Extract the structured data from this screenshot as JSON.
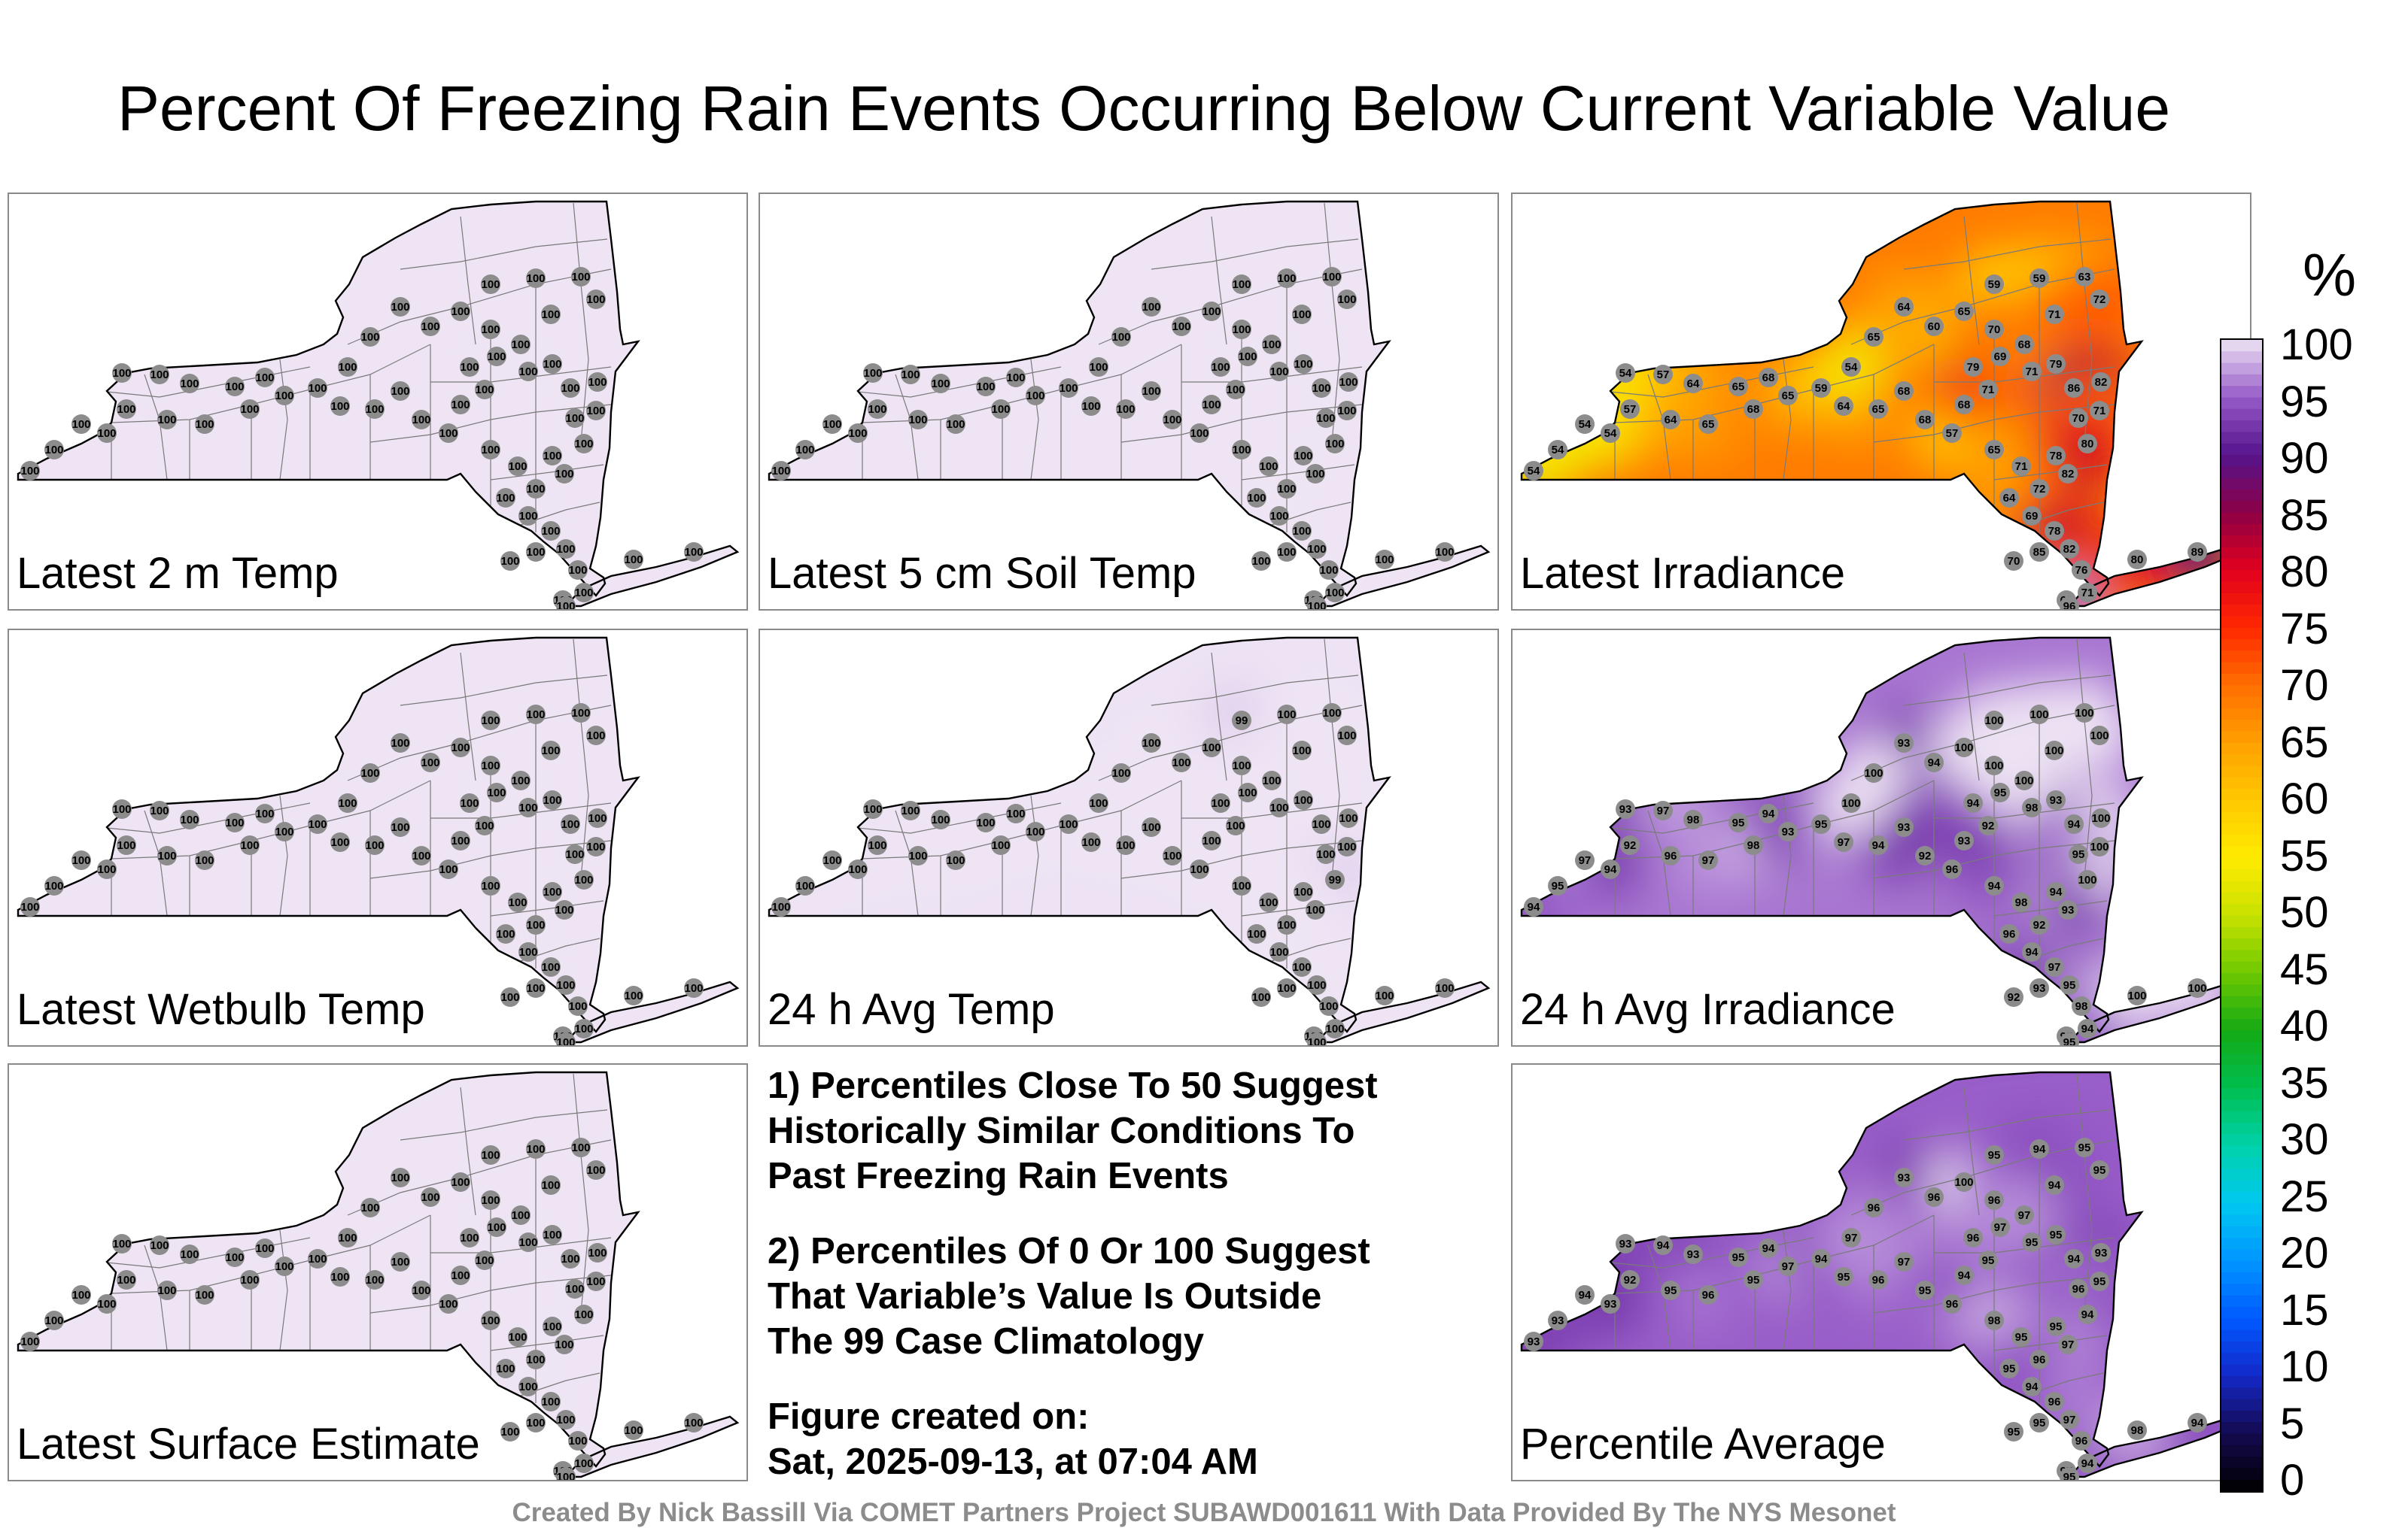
{
  "title": "Percent Of Freezing Rain Events Occurring Below Current Variable Value",
  "colorbar": {
    "unit": "%",
    "ticks": [
      "100",
      "95",
      "90",
      "85",
      "80",
      "75",
      "70",
      "65",
      "60",
      "55",
      "50",
      "45",
      "40",
      "35",
      "30",
      "25",
      "20",
      "15",
      "10",
      "5",
      "0"
    ]
  },
  "notes": {
    "note1": [
      "1) Percentiles Close To 50 Suggest",
      "Historically Similar Conditions To",
      "Past Freezing Rain Events"
    ],
    "note2": [
      "2) Percentiles Of 0 Or 100 Suggest",
      "That Variable’s Value Is Outside",
      "The 99 Case Climatology"
    ],
    "created_label": "Figure created on:",
    "created_value": "Sat, 2025-09-13, at 07:04 AM"
  },
  "footer": "Created By Nick Bassill Via COMET Partners Project SUBAWD001611 With Data Provided By The NYS Mesonet",
  "chart_data": [
    {
      "type": "heatmap",
      "label": "Latest 2 m Temp",
      "station_values": [
        100,
        100,
        100,
        100,
        100,
        100,
        100,
        100,
        100,
        100,
        100,
        100,
        100,
        100,
        100,
        100,
        100,
        100,
        100,
        100,
        100,
        100,
        100,
        100,
        100,
        100,
        100,
        100,
        100,
        100,
        100,
        100,
        100,
        100,
        100,
        100,
        100,
        100,
        100,
        100,
        100,
        100,
        100,
        100,
        100,
        100,
        100,
        100,
        100,
        100,
        100,
        100,
        100,
        100,
        100,
        100,
        100,
        100,
        100,
        100
      ]
    },
    {
      "type": "heatmap",
      "label": "Latest 5 cm Soil Temp",
      "station_values": [
        100,
        100,
        100,
        100,
        100,
        100,
        100,
        100,
        100,
        100,
        100,
        100,
        100,
        100,
        100,
        100,
        100,
        100,
        100,
        100,
        100,
        100,
        100,
        100,
        100,
        100,
        100,
        100,
        100,
        100,
        100,
        100,
        100,
        100,
        100,
        100,
        100,
        100,
        100,
        100,
        100,
        100,
        100,
        100,
        100,
        100,
        100,
        100,
        100,
        100,
        100,
        100,
        100,
        100,
        100,
        100,
        100,
        100,
        100,
        100
      ]
    },
    {
      "type": "heatmap",
      "label": "Latest Irradiance",
      "station_values": [
        54,
        54,
        54,
        54,
        57,
        54,
        57,
        64,
        65,
        68,
        64,
        65,
        68,
        65,
        59,
        64,
        65,
        68,
        68,
        57,
        68,
        71,
        79,
        69,
        71,
        79,
        86,
        82,
        71,
        70,
        80,
        78,
        82,
        72,
        71,
        65,
        64,
        69,
        78,
        82,
        85,
        70,
        76,
        71,
        68,
        80,
        89,
        96,
        60,
        64,
        65,
        59,
        59,
        63,
        72,
        71,
        70,
        68,
        65,
        54
      ]
    },
    {
      "type": "heatmap",
      "label": "Latest Wetbulb Temp",
      "station_values": [
        100,
        100,
        100,
        100,
        100,
        100,
        100,
        100,
        100,
        100,
        100,
        100,
        100,
        100,
        100,
        100,
        100,
        100,
        100,
        100,
        100,
        100,
        100,
        100,
        100,
        100,
        100,
        100,
        100,
        100,
        100,
        100,
        100,
        100,
        100,
        100,
        100,
        100,
        100,
        100,
        100,
        100,
        100,
        100,
        100,
        100,
        100,
        100,
        100,
        100,
        100,
        100,
        100,
        100,
        100,
        100,
        100,
        100,
        100,
        100
      ]
    },
    {
      "type": "heatmap",
      "label": "24 h Avg Temp",
      "station_values": [
        100,
        100,
        100,
        100,
        100,
        100,
        100,
        100,
        100,
        100,
        100,
        100,
        100,
        100,
        100,
        100,
        100,
        100,
        100,
        100,
        100,
        100,
        100,
        100,
        100,
        100,
        100,
        100,
        100,
        100,
        99,
        100,
        100,
        100,
        100,
        100,
        100,
        100,
        100,
        100,
        100,
        100,
        100,
        100,
        100,
        100,
        100,
        100,
        100,
        100,
        100,
        99,
        100,
        100,
        100,
        100,
        100,
        100,
        100,
        100
      ]
    },
    {
      "type": "heatmap",
      "label": "24 h Avg Irradiance",
      "station_values": [
        94,
        95,
        97,
        94,
        92,
        93,
        97,
        98,
        95,
        94,
        96,
        97,
        98,
        93,
        95,
        97,
        94,
        93,
        92,
        96,
        93,
        92,
        94,
        95,
        98,
        93,
        94,
        100,
        100,
        95,
        100,
        94,
        93,
        92,
        98,
        94,
        96,
        94,
        97,
        95,
        93,
        92,
        98,
        94,
        95,
        100,
        100,
        95,
        94,
        93,
        100,
        100,
        100,
        100,
        100,
        100,
        100,
        100,
        100,
        100
      ]
    },
    {
      "type": "heatmap",
      "label": "Latest Surface Estimate",
      "station_values": [
        100,
        100,
        100,
        100,
        100,
        100,
        100,
        100,
        100,
        100,
        100,
        100,
        100,
        100,
        100,
        100,
        100,
        100,
        100,
        100,
        100,
        100,
        100,
        100,
        100,
        100,
        100,
        100,
        100,
        100,
        100,
        100,
        100,
        100,
        100,
        100,
        100,
        100,
        100,
        100,
        100,
        100,
        100,
        100,
        100,
        100,
        100,
        100,
        100,
        100,
        100,
        100,
        100,
        100,
        100,
        100,
        100,
        100,
        100,
        100
      ]
    },
    {
      "type": "heatmap",
      "label": "Percentile Average",
      "station_values": [
        93,
        93,
        94,
        93,
        92,
        93,
        94,
        93,
        95,
        94,
        95,
        96,
        95,
        97,
        94,
        95,
        96,
        97,
        95,
        96,
        94,
        95,
        96,
        97,
        95,
        95,
        94,
        93,
        95,
        96,
        94,
        95,
        97,
        96,
        95,
        98,
        95,
        94,
        96,
        97,
        95,
        95,
        96,
        94,
        97,
        98,
        94,
        95,
        96,
        93,
        100,
        95,
        94,
        95,
        95,
        94,
        96,
        97,
        96,
        97
      ]
    }
  ]
}
